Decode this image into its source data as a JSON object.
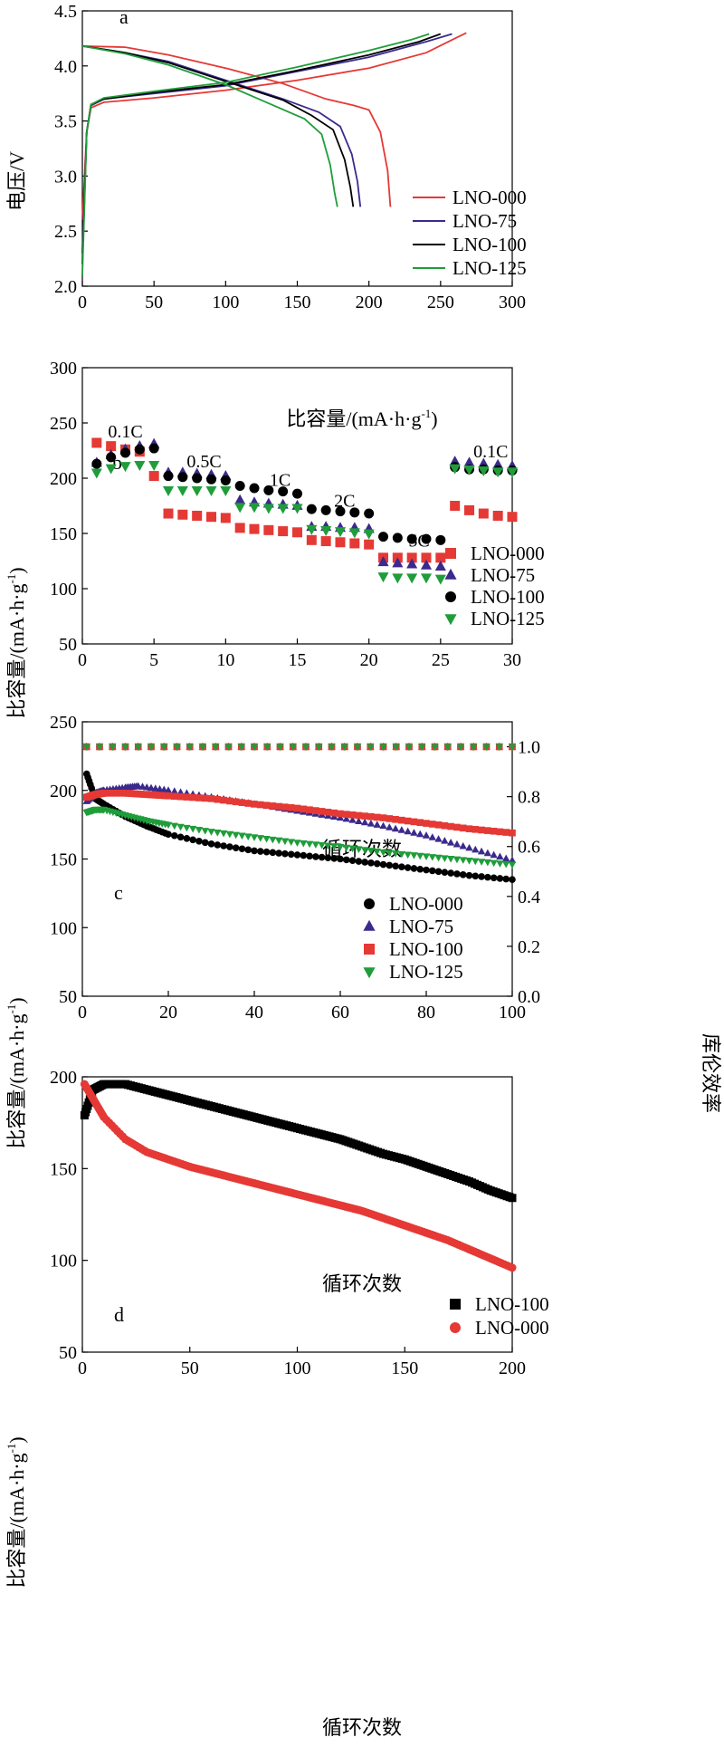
{
  "colors": {
    "red": "#e53935",
    "purple": "#3a2a8c",
    "black": "#000000",
    "green": "#1f9d3a"
  },
  "panels": {
    "a": {
      "label": "a",
      "xlabel": "比容量/(mA·h·g",
      "xlabel_sup": "-1",
      "xlabel_end": ")",
      "ylabel": "电压/V"
    },
    "b": {
      "label": "b",
      "xlabel": "循环次数",
      "ylabel": "比容量/(mA·h·g",
      "ylabel_sup": "-1",
      "ylabel_end": ")",
      "annotations": [
        "0.1C",
        "0.5C",
        "1C",
        "2C",
        "5C",
        "0.1C"
      ]
    },
    "c": {
      "label": "c",
      "xlabel": "循环次数",
      "ylabel": "比容量/(mA·h·g",
      "ylabel_sup": "-1",
      "ylabel_end": ")",
      "y2label": "库伦效率"
    },
    "d": {
      "label": "d",
      "xlabel": "循环次数",
      "ylabel": "比容量/(mA·h·g",
      "ylabel_sup": "-1",
      "ylabel_end": ")"
    }
  },
  "chart_data": [
    {
      "panel": "a",
      "type": "line",
      "xlabel": "比容量/(mA·h·g-1)",
      "ylabel": "电压/V",
      "xlim": [
        0,
        300
      ],
      "ylim": [
        2.0,
        4.5
      ],
      "xticks": [
        0,
        50,
        100,
        150,
        200,
        250,
        300
      ],
      "yticks": [
        2.0,
        2.5,
        3.0,
        3.5,
        4.0,
        4.5
      ],
      "legend_position": "bottom-right",
      "series": [
        {
          "name": "LNO-000",
          "color": "#e53935",
          "charge": [
            [
              0,
              2.6
            ],
            [
              3,
              3.4
            ],
            [
              6,
              3.62
            ],
            [
              15,
              3.67
            ],
            [
              50,
              3.71
            ],
            [
              100,
              3.78
            ],
            [
              150,
              3.87
            ],
            [
              200,
              3.98
            ],
            [
              240,
              4.12
            ],
            [
              260,
              4.25
            ],
            [
              268,
              4.3
            ]
          ],
          "discharge": [
            [
              0,
              4.18
            ],
            [
              30,
              4.17
            ],
            [
              60,
              4.1
            ],
            [
              100,
              3.98
            ],
            [
              140,
              3.84
            ],
            [
              170,
              3.7
            ],
            [
              190,
              3.64
            ],
            [
              200,
              3.6
            ],
            [
              208,
              3.4
            ],
            [
              213,
              3.05
            ],
            [
              215,
              2.72
            ]
          ]
        },
        {
          "name": "LNO-75",
          "color": "#3a2a8c",
          "charge": [
            [
              0,
              2.3
            ],
            [
              3,
              3.4
            ],
            [
              6,
              3.64
            ],
            [
              15,
              3.7
            ],
            [
              50,
              3.75
            ],
            [
              100,
              3.82
            ],
            [
              150,
              3.95
            ],
            [
              200,
              4.08
            ],
            [
              240,
              4.22
            ],
            [
              258,
              4.29
            ]
          ],
          "discharge": [
            [
              0,
              4.18
            ],
            [
              30,
              4.12
            ],
            [
              60,
              4.04
            ],
            [
              100,
              3.87
            ],
            [
              140,
              3.7
            ],
            [
              165,
              3.58
            ],
            [
              180,
              3.45
            ],
            [
              188,
              3.2
            ],
            [
              192,
              2.95
            ],
            [
              194,
              2.72
            ]
          ]
        },
        {
          "name": "LNO-100",
          "color": "#000000",
          "charge": [
            [
              0,
              2.2
            ],
            [
              3,
              3.4
            ],
            [
              6,
              3.65
            ],
            [
              15,
              3.7
            ],
            [
              50,
              3.76
            ],
            [
              100,
              3.83
            ],
            [
              150,
              3.96
            ],
            [
              200,
              4.1
            ],
            [
              235,
              4.22
            ],
            [
              250,
              4.29
            ]
          ],
          "discharge": [
            [
              0,
              4.18
            ],
            [
              30,
              4.12
            ],
            [
              60,
              4.03
            ],
            [
              100,
              3.86
            ],
            [
              140,
              3.69
            ],
            [
              160,
              3.55
            ],
            [
              175,
              3.42
            ],
            [
              183,
              3.15
            ],
            [
              187,
              2.9
            ],
            [
              189,
              2.72
            ]
          ]
        },
        {
          "name": "LNO-125",
          "color": "#1f9d3a",
          "charge": [
            [
              0,
              2.1
            ],
            [
              3,
              3.4
            ],
            [
              6,
              3.65
            ],
            [
              15,
              3.71
            ],
            [
              50,
              3.77
            ],
            [
              100,
              3.85
            ],
            [
              150,
              3.99
            ],
            [
              200,
              4.14
            ],
            [
              230,
              4.24
            ],
            [
              242,
              4.29
            ]
          ],
          "discharge": [
            [
              0,
              4.18
            ],
            [
              30,
              4.11
            ],
            [
              60,
              4.01
            ],
            [
              100,
              3.83
            ],
            [
              130,
              3.66
            ],
            [
              155,
              3.52
            ],
            [
              167,
              3.38
            ],
            [
              173,
              3.1
            ],
            [
              176,
              2.85
            ],
            [
              178,
              2.72
            ]
          ]
        }
      ]
    },
    {
      "panel": "b",
      "type": "scatter",
      "xlabel": "循环次数",
      "ylabel": "比容量/(mA·h·g-1)",
      "xlim": [
        0,
        30
      ],
      "ylim": [
        50,
        300
      ],
      "xticks": [
        0,
        5,
        10,
        15,
        20,
        25,
        30
      ],
      "yticks": [
        50,
        100,
        150,
        200,
        250,
        300
      ],
      "legend_position": "bottom-right",
      "annotations": [
        {
          "text": "0.1C",
          "x": 3,
          "y": 237
        },
        {
          "text": "0.5C",
          "x": 8.5,
          "y": 210
        },
        {
          "text": "1C",
          "x": 13.8,
          "y": 193
        },
        {
          "text": "2C",
          "x": 18.3,
          "y": 174
        },
        {
          "text": "5C",
          "x": 23.5,
          "y": 138
        },
        {
          "text": "0.1C",
          "x": 28.5,
          "y": 219
        }
      ],
      "series": [
        {
          "name": "LNO-000",
          "color": "#e53935",
          "marker": "square",
          "x": [
            1,
            2,
            3,
            4,
            5,
            6,
            7,
            8,
            9,
            10,
            11,
            12,
            13,
            14,
            15,
            16,
            17,
            18,
            19,
            20,
            21,
            22,
            23,
            24,
            25,
            26,
            27,
            28,
            29,
            30
          ],
          "y": [
            232,
            229,
            226,
            224,
            202,
            168,
            167,
            166,
            165,
            164,
            155,
            154,
            153,
            152,
            151,
            144,
            143,
            142,
            141,
            140,
            128,
            128,
            128,
            128,
            128,
            175,
            171,
            168,
            166,
            165
          ]
        },
        {
          "name": "LNO-75",
          "color": "#3a2a8c",
          "marker": "triangle-up",
          "x": [
            1,
            2,
            3,
            4,
            5,
            6,
            7,
            8,
            9,
            10,
            11,
            12,
            13,
            14,
            15,
            16,
            17,
            18,
            19,
            20,
            21,
            22,
            23,
            24,
            25,
            26,
            27,
            28,
            29,
            30
          ],
          "y": [
            214,
            221,
            226,
            229,
            231,
            205,
            205,
            204,
            203,
            202,
            180,
            178,
            177,
            176,
            175,
            156,
            156,
            155,
            155,
            154,
            124,
            123,
            122,
            121,
            120,
            215,
            214,
            213,
            212,
            211
          ]
        },
        {
          "name": "LNO-100",
          "color": "#000000",
          "marker": "circle",
          "x": [
            1,
            2,
            3,
            4,
            5,
            6,
            7,
            8,
            9,
            10,
            11,
            12,
            13,
            14,
            15,
            16,
            17,
            18,
            19,
            20,
            21,
            22,
            23,
            24,
            25,
            26,
            27,
            28,
            29,
            30
          ],
          "y": [
            213,
            219,
            223,
            226,
            227,
            202,
            201,
            200,
            199,
            198,
            193,
            191,
            189,
            188,
            186,
            172,
            171,
            170,
            169,
            168,
            147,
            146,
            145,
            145,
            144,
            210,
            208,
            208,
            207,
            207
          ]
        },
        {
          "name": "LNO-125",
          "color": "#1f9d3a",
          "marker": "triangle-down",
          "x": [
            1,
            2,
            3,
            4,
            5,
            6,
            7,
            8,
            9,
            10,
            11,
            12,
            13,
            14,
            15,
            16,
            17,
            18,
            19,
            20,
            21,
            22,
            23,
            24,
            25,
            26,
            27,
            28,
            29,
            30
          ],
          "y": [
            205,
            209,
            211,
            212,
            212,
            189,
            189,
            189,
            189,
            189,
            174,
            174,
            173,
            173,
            173,
            154,
            153,
            152,
            151,
            150,
            111,
            110,
            110,
            110,
            109,
            209,
            208,
            207,
            206,
            206
          ]
        }
      ]
    },
    {
      "panel": "c",
      "type": "scatter",
      "xlabel": "循环次数",
      "ylabel": "比容量/(mA·h·g-1)",
      "y2label": "库伦效率",
      "xlim": [
        0,
        100
      ],
      "ylim": [
        50,
        250
      ],
      "y2lim": [
        0.0,
        1.1
      ],
      "xticks": [
        0,
        20,
        40,
        60,
        80,
        100
      ],
      "yticks": [
        50,
        100,
        150,
        200,
        250
      ],
      "y2ticks": [
        0.0,
        0.2,
        0.4,
        0.6,
        0.8,
        1.0
      ],
      "legend_position": "bottom-right",
      "series": [
        {
          "name": "LNO-000",
          "color": "#000000",
          "marker": "circle",
          "x": [
            1,
            3,
            5,
            10,
            15,
            20,
            30,
            40,
            50,
            60,
            70,
            80,
            90,
            100
          ],
          "y": [
            212,
            194,
            190,
            181,
            174,
            168,
            161,
            156,
            153,
            150,
            146,
            142,
            138,
            135
          ],
          "efficiency": 1.0
        },
        {
          "name": "LNO-75",
          "color": "#3a2a8c",
          "marker": "triangle-up",
          "x": [
            1,
            3,
            5,
            10,
            13,
            20,
            30,
            40,
            50,
            60,
            70,
            80,
            90,
            100
          ],
          "y": [
            192,
            198,
            200,
            202,
            203,
            200,
            195,
            190,
            185,
            180,
            174,
            167,
            158,
            149
          ],
          "efficiency": 1.0
        },
        {
          "name": "LNO-100",
          "color": "#e53935",
          "marker": "square",
          "x": [
            1,
            3,
            5,
            10,
            15,
            20,
            30,
            40,
            50,
            60,
            70,
            80,
            90,
            100
          ],
          "y": [
            195,
            197,
            198,
            198,
            197,
            196,
            194,
            190,
            187,
            183,
            180,
            176,
            172,
            169
          ],
          "efficiency": 1.0
        },
        {
          "name": "LNO-125",
          "color": "#1f9d3a",
          "marker": "triangle-down",
          "x": [
            1,
            3,
            5,
            10,
            15,
            20,
            30,
            40,
            50,
            60,
            70,
            80,
            90,
            100
          ],
          "y": [
            184,
            186,
            186,
            182,
            178,
            175,
            170,
            166,
            162,
            159,
            155,
            152,
            149,
            146
          ],
          "efficiency": 1.0
        }
      ]
    },
    {
      "panel": "d",
      "type": "scatter",
      "xlabel": "循环次数",
      "ylabel": "比容量/(mA·h·g-1)",
      "xlim": [
        0,
        200
      ],
      "ylim": [
        50,
        200
      ],
      "xticks": [
        0,
        50,
        100,
        150,
        200
      ],
      "yticks": [
        50,
        100,
        150,
        200
      ],
      "legend_position": "bottom-right",
      "series": [
        {
          "name": "LNO-100",
          "color": "#000000",
          "marker": "square",
          "x": [
            1,
            5,
            10,
            20,
            30,
            40,
            50,
            60,
            70,
            80,
            90,
            100,
            110,
            120,
            130,
            140,
            150,
            160,
            170,
            180,
            190,
            200
          ],
          "y": [
            179,
            193,
            196,
            196,
            193,
            190,
            187,
            184,
            181,
            178,
            175,
            172,
            169,
            166,
            162,
            158,
            155,
            151,
            147,
            143,
            138,
            134
          ]
        },
        {
          "name": "LNO-000",
          "color": "#e53935",
          "marker": "circle",
          "x": [
            1,
            5,
            10,
            20,
            30,
            40,
            50,
            60,
            70,
            80,
            90,
            100,
            110,
            120,
            130,
            140,
            150,
            160,
            170,
            180,
            190,
            200
          ],
          "y": [
            196,
            188,
            178,
            166,
            159,
            155,
            151,
            148,
            145,
            142,
            139,
            136,
            133,
            130,
            127,
            123,
            119,
            115,
            111,
            106,
            101,
            96
          ]
        }
      ]
    }
  ]
}
